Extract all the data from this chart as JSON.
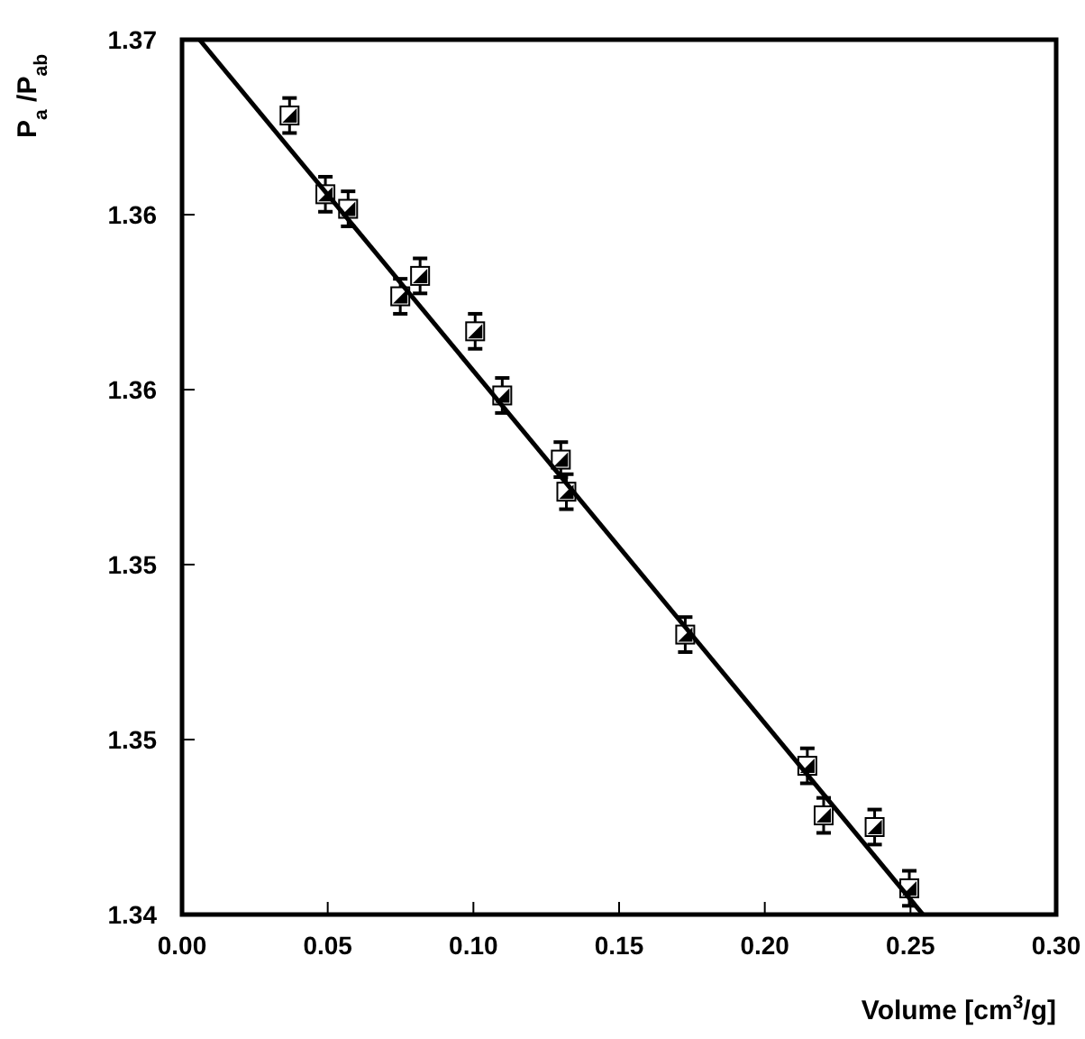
{
  "chart_data": {
    "type": "scatter",
    "xlabel": "Volume [cm$^{3}$/g]",
    "ylabel": "P$_{a}$ /P$_{ab}$",
    "xlim": [
      0,
      0.3
    ],
    "xticks": [
      {
        "value": 0,
        "label": "0.00"
      },
      {
        "value": 0.05,
        "label": "0.05"
      },
      {
        "value": 0.1,
        "label": "0.10"
      },
      {
        "value": 0.15,
        "label": "0.15"
      },
      {
        "value": 0.2,
        "label": "0.20"
      },
      {
        "value": 0.25,
        "label": "0.25"
      },
      {
        "value": 0.3,
        "label": "0.30"
      }
    ],
    "ylim": [
      1.34,
      1.37
    ],
    "yticks": [
      {
        "value": 1.34,
        "label": "1.34"
      },
      {
        "value": 1.346,
        "label": "1.35"
      },
      {
        "value": 1.352,
        "label": "1.35"
      },
      {
        "value": 1.358,
        "label": "1.36"
      },
      {
        "value": 1.364,
        "label": "1.36"
      },
      {
        "value": 1.37,
        "label": "1.37"
      }
    ],
    "grid": false,
    "series": [
      {
        "color": "#000000",
        "marker": "square",
        "x": [
          0.0369,
          0.0492,
          0.057,
          0.0749,
          0.0817,
          0.1006,
          0.1099,
          0.13,
          0.1319,
          0.1727,
          0.2146,
          0.2202,
          0.2377,
          0.2496
        ],
        "values": [
          1.3674,
          1.3647,
          1.3642,
          1.3612,
          1.3619,
          1.36,
          1.3578,
          1.3556,
          1.3545,
          1.3496,
          1.3451,
          1.3434,
          1.343,
          1.3409
        ],
        "errors": [
          0.0006,
          0.0006,
          0.0006,
          0.0006,
          0.0006,
          0.0006,
          0.0006,
          0.0006,
          0.0006,
          0.0006,
          0.0006,
          0.0006,
          0.0006,
          0.0006
        ]
      },
      {
        "type": "line",
        "color": "#000000",
        "x": [
          0.006,
          0.2543
        ],
        "values": [
          1.37,
          1.34
        ],
        "line_style": "solid"
      }
    ]
  }
}
